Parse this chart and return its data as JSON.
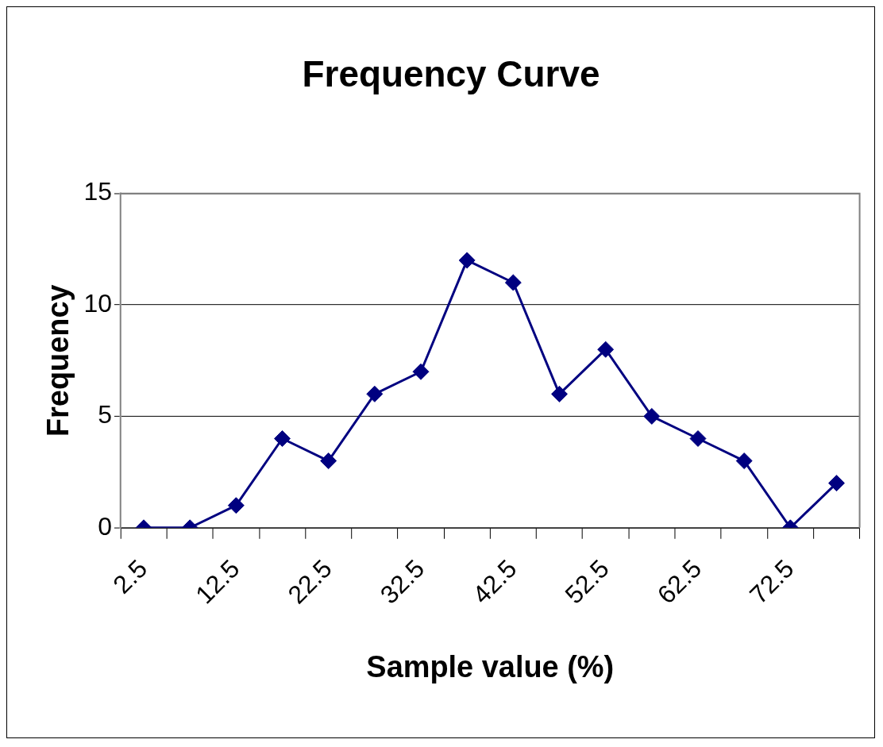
{
  "chart_data": {
    "type": "line",
    "title": "Frequency Curve",
    "xlabel": "Sample value (%)",
    "ylabel": "Frequency",
    "categories": [
      "2.5",
      null,
      "12.5",
      null,
      "22.5",
      null,
      "32.5",
      null,
      "42.5",
      null,
      "52.5",
      null,
      "62.5",
      null,
      "72.5",
      null
    ],
    "series": [
      {
        "color": "#000080",
        "values": [
          0,
          0,
          1,
          4,
          3,
          6,
          7,
          12,
          11,
          6,
          8,
          5,
          4,
          3,
          0,
          2
        ]
      }
    ],
    "ylim": [
      0,
      15
    ],
    "yticks": [
      0,
      5,
      10,
      15
    ],
    "grid": "y",
    "legend": false,
    "marker": "diamond",
    "line_style": "solid"
  }
}
